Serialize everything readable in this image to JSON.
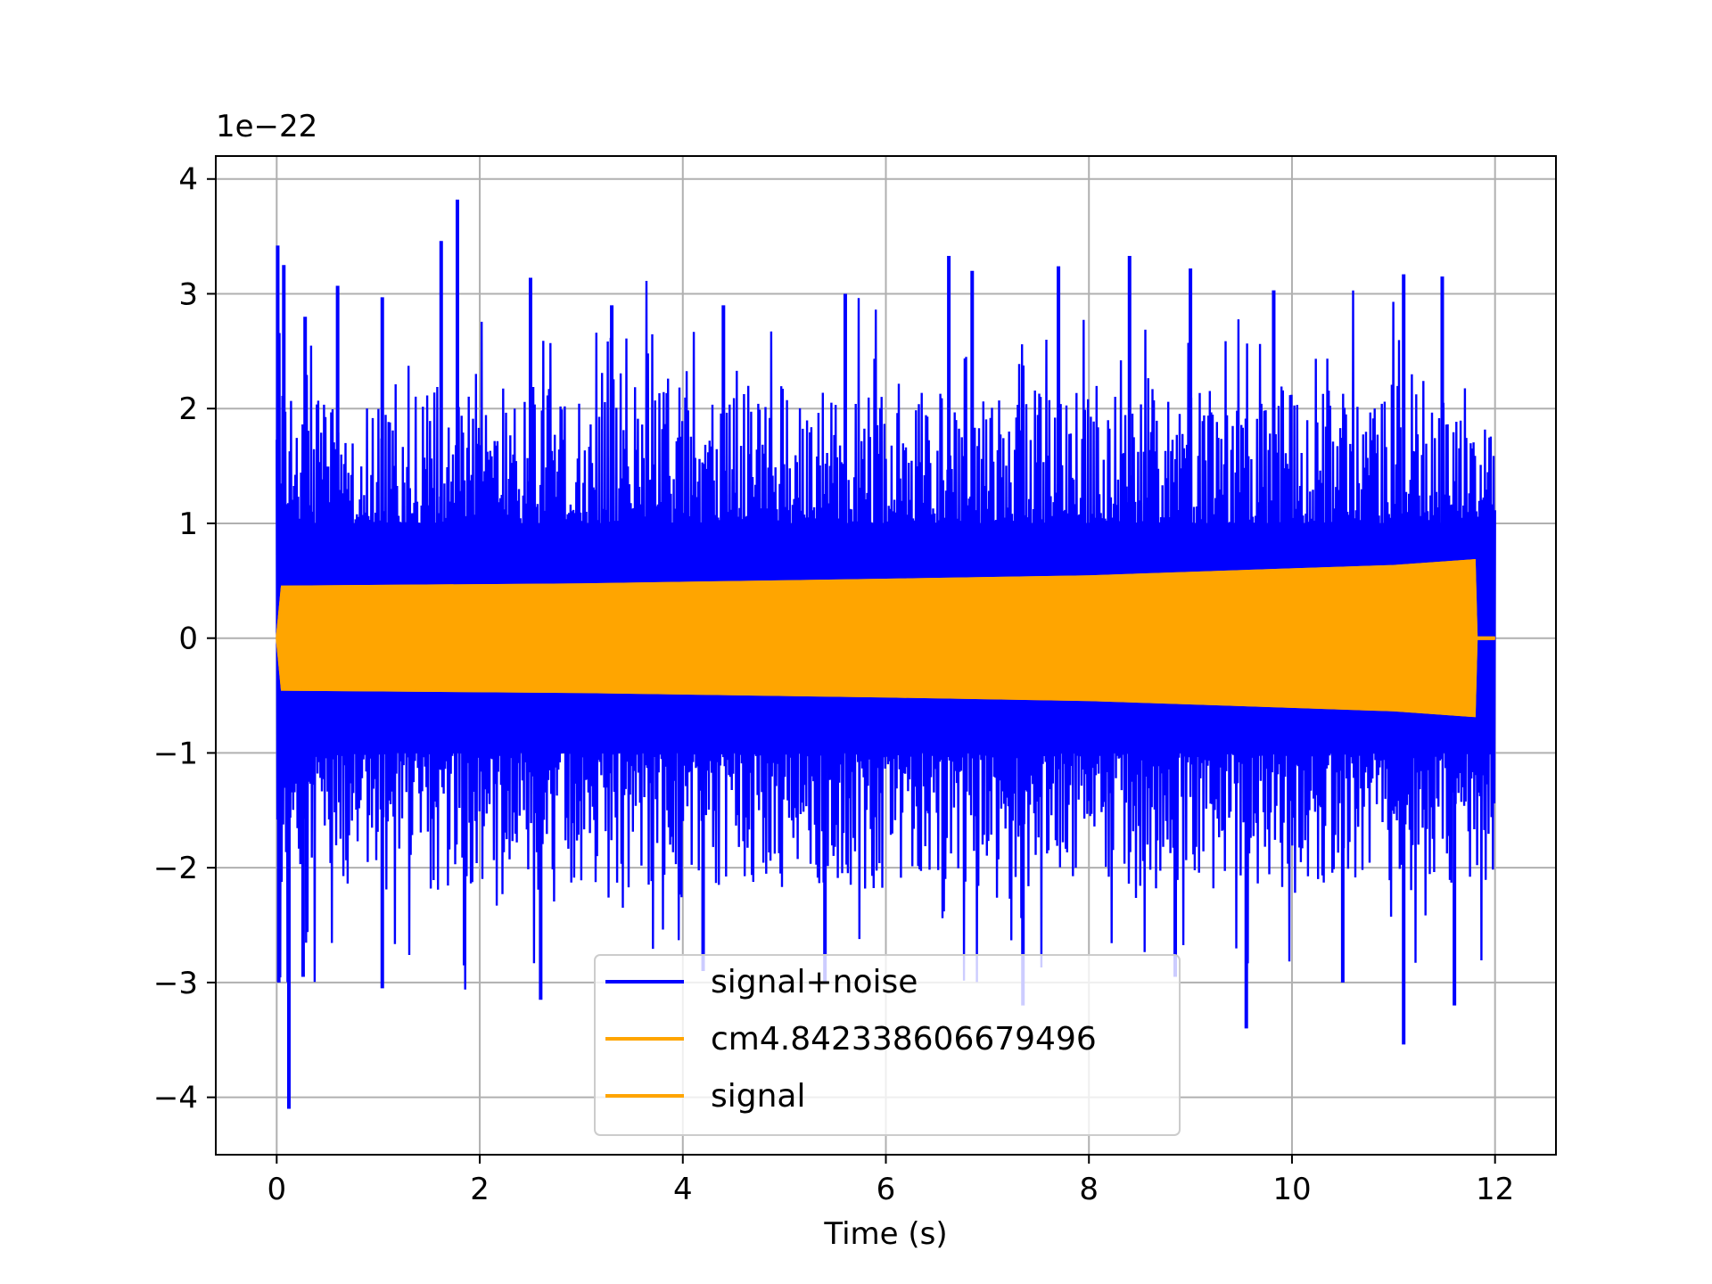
{
  "chart_data": {
    "type": "line",
    "title": "",
    "xlabel": "Time (s)",
    "ylabel": "",
    "offset_text": "1e−22",
    "xlim": [
      -0.6,
      12.6
    ],
    "ylim": [
      -4.5,
      4.2
    ],
    "x_ticks": [
      0,
      2,
      4,
      6,
      8,
      10,
      12
    ],
    "y_ticks": [
      -4,
      -3,
      -2,
      -1,
      0,
      1,
      2,
      3,
      4
    ],
    "x_tick_labels": [
      "0",
      "2",
      "4",
      "6",
      "8",
      "10",
      "12"
    ],
    "y_tick_labels": [
      "−4",
      "−3",
      "−2",
      "−1",
      "0",
      "1",
      "2",
      "3",
      "4"
    ],
    "grid": true,
    "legend_position": "lower center",
    "series": [
      {
        "name": "signal+noise",
        "color": "#0000ff",
        "kind": "noise",
        "x_range": [
          0,
          12
        ],
        "typical_abs_range": [
          1.0,
          2.2
        ],
        "spikes": [
          {
            "x": 0.01,
            "y": 3.42
          },
          {
            "x": 0.07,
            "y": 3.25
          },
          {
            "x": 0.28,
            "y": 2.8
          },
          {
            "x": 0.6,
            "y": 3.07
          },
          {
            "x": 1.04,
            "y": 2.97
          },
          {
            "x": 1.62,
            "y": 3.46
          },
          {
            "x": 1.78,
            "y": 3.82
          },
          {
            "x": 2.5,
            "y": 3.14
          },
          {
            "x": 3.3,
            "y": 2.9
          },
          {
            "x": 4.4,
            "y": 2.9
          },
          {
            "x": 5.6,
            "y": 3.0
          },
          {
            "x": 6.62,
            "y": 3.33
          },
          {
            "x": 6.85,
            "y": 3.2
          },
          {
            "x": 7.7,
            "y": 3.24
          },
          {
            "x": 8.4,
            "y": 3.33
          },
          {
            "x": 9.0,
            "y": 3.22
          },
          {
            "x": 9.82,
            "y": 3.03
          },
          {
            "x": 11.1,
            "y": 3.17
          },
          {
            "x": 11.48,
            "y": 3.15
          },
          {
            "x": 0.02,
            "y": -3.0
          },
          {
            "x": 0.12,
            "y": -4.1
          },
          {
            "x": 0.26,
            "y": -2.95
          },
          {
            "x": 1.04,
            "y": -3.05
          },
          {
            "x": 1.85,
            "y": -2.85
          },
          {
            "x": 2.6,
            "y": -3.15
          },
          {
            "x": 4.2,
            "y": -2.9
          },
          {
            "x": 5.4,
            "y": -3.0
          },
          {
            "x": 7.35,
            "y": -3.2
          },
          {
            "x": 8.85,
            "y": -2.95
          },
          {
            "x": 9.55,
            "y": -3.4
          },
          {
            "x": 10.5,
            "y": -3.0
          },
          {
            "x": 11.1,
            "y": -3.54
          },
          {
            "x": 11.6,
            "y": -3.2
          }
        ]
      },
      {
        "name": "cm4.842338606679496",
        "color": "#ffa500",
        "kind": "envelope",
        "points": [
          {
            "x": 0.0,
            "y": 0.0
          },
          {
            "x": 0.05,
            "y": 0.45
          },
          {
            "x": 3.0,
            "y": 0.47
          },
          {
            "x": 6.0,
            "y": 0.51
          },
          {
            "x": 8.0,
            "y": 0.54
          },
          {
            "x": 10.0,
            "y": 0.6
          },
          {
            "x": 11.0,
            "y": 0.63
          },
          {
            "x": 11.8,
            "y": 0.68
          },
          {
            "x": 11.82,
            "y": 0.0
          },
          {
            "x": 12.0,
            "y": 0.0
          }
        ]
      },
      {
        "name": "signal",
        "color": "#ffa500",
        "kind": "envelope",
        "points": [
          {
            "x": 0.0,
            "y": 0.0
          },
          {
            "x": 0.05,
            "y": 0.45
          },
          {
            "x": 3.0,
            "y": 0.47
          },
          {
            "x": 6.0,
            "y": 0.51
          },
          {
            "x": 8.0,
            "y": 0.54
          },
          {
            "x": 10.0,
            "y": 0.6
          },
          {
            "x": 11.0,
            "y": 0.63
          },
          {
            "x": 11.8,
            "y": 0.68
          },
          {
            "x": 11.82,
            "y": 0.0
          },
          {
            "x": 12.0,
            "y": 0.0
          }
        ]
      }
    ]
  }
}
